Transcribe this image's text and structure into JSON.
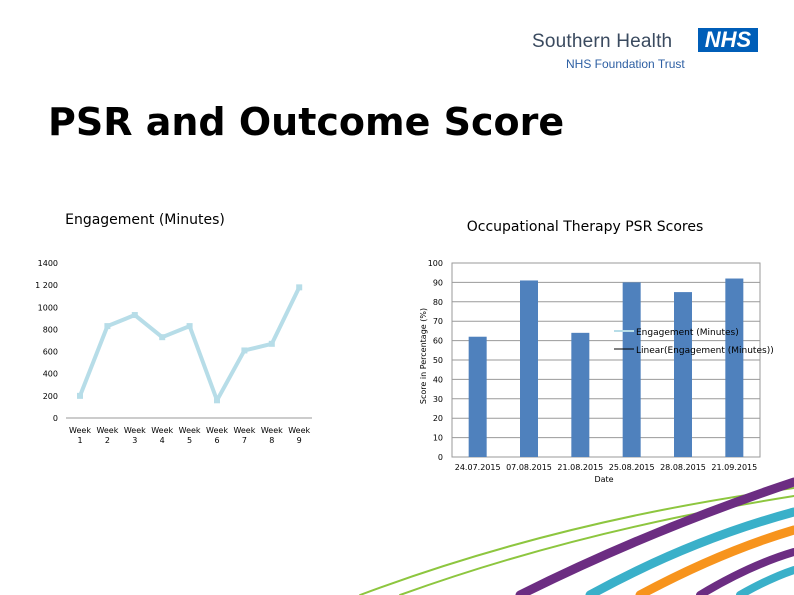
{
  "logo": {
    "name": "Southern Health",
    "badge": "NHS",
    "sub": "NHS Foundation Trust",
    "badge_color": "#005eb8"
  },
  "slide": {
    "title": "PSR and Outcome Score"
  },
  "chart_data": [
    {
      "type": "line",
      "title": "Engagement (Minutes)",
      "categories": [
        "Week\n1",
        "Week\n2",
        "Week\n3",
        "Week\n4",
        "Week\n5",
        "Week\n6",
        "Week\n7",
        "Week\n8",
        "Week\n9"
      ],
      "values": [
        200,
        830,
        930,
        730,
        830,
        160,
        610,
        670,
        1180
      ],
      "ylim": [
        0,
        1400
      ],
      "yticks": [
        0,
        200,
        400,
        600,
        800,
        1000,
        1200,
        1400
      ],
      "ytick_labels": [
        "0",
        "200",
        "400",
        "600",
        "800",
        "1000",
        "1 200",
        "1400"
      ],
      "line_color": "#b7dde8",
      "grid": false
    },
    {
      "type": "bar",
      "title": "Occupational Therapy PSR Scores",
      "xlabel": "Date",
      "ylabel": "Score in Percentage (%)",
      "categories": [
        "24.07.2015",
        "07.08.2015",
        "21.08.2015",
        "25.08.2015",
        "28.08.2015",
        "21.09.2015"
      ],
      "values": [
        62,
        91,
        64,
        90,
        85,
        92
      ],
      "ylim": [
        0,
        100
      ],
      "yticks": [
        0,
        10,
        20,
        30,
        40,
        50,
        60,
        70,
        80,
        90,
        100
      ],
      "bar_color": "#4f81bd",
      "grid": true,
      "legend": [
        "Engagement (Minutes)",
        "Linear(Engagement (Minutes))"
      ],
      "legend_position": "right"
    }
  ],
  "decor_colors": [
    "#8dc63f",
    "#6c2d82",
    "#3ab0c9",
    "#f7941d"
  ]
}
